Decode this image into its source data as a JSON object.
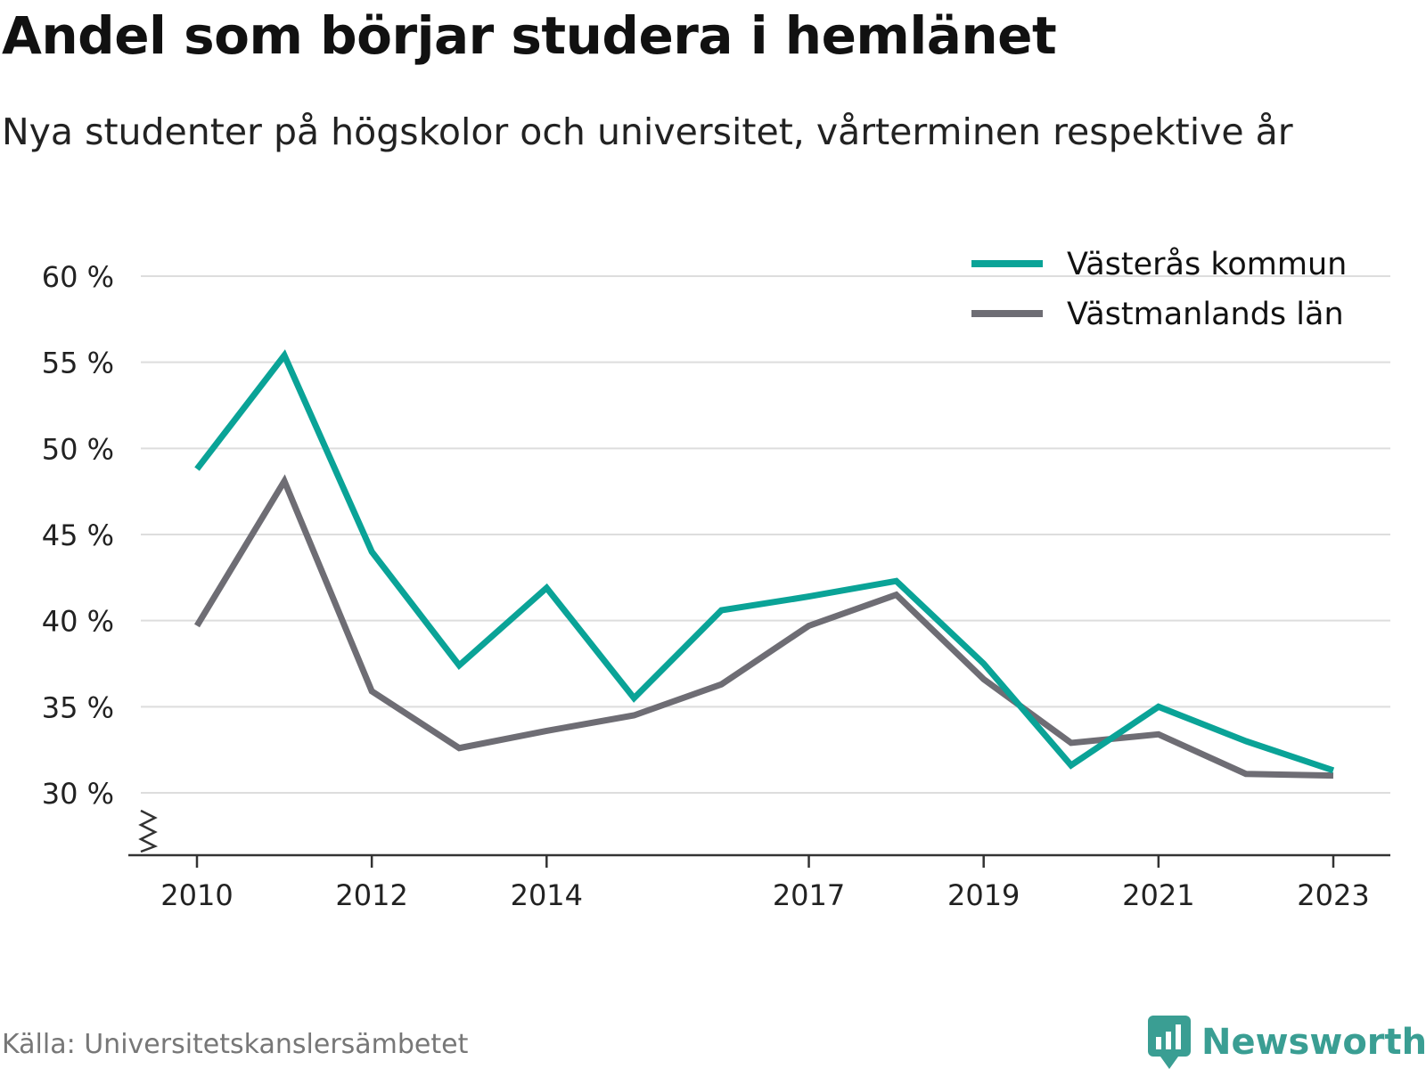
{
  "title": "Andel som börjar studera i hemlänet",
  "subtitle": "Nya studenter på högskolor och universitet, vårterminen respektive år",
  "source": "Källa: Universitetskanslersämbetet",
  "brand": "Newsworthy",
  "colors": {
    "series_primary": "#0aa397",
    "series_secondary": "#6e6d74",
    "grid": "#dddddd",
    "axis": "#333333",
    "brand": "#3a9e93"
  },
  "chart_data": {
    "type": "line",
    "title": "Andel som börjar studera i hemlänet",
    "subtitle": "Nya studenter på högskolor och universitet, vårterminen respektive år",
    "x": [
      2010,
      2011,
      2012,
      2013,
      2014,
      2015,
      2016,
      2017,
      2018,
      2019,
      2020,
      2021,
      2022,
      2023
    ],
    "x_ticks": [
      "2010",
      "2012",
      "2014",
      "2017",
      "2019",
      "2021",
      "2023"
    ],
    "y_ticks": [
      "30 %",
      "35 %",
      "40 %",
      "45 %",
      "50 %",
      "55 %",
      "60 %"
    ],
    "ylim": [
      30,
      60
    ],
    "y_axis_break": true,
    "grid": true,
    "legend_position": "top-right",
    "series": [
      {
        "name": "Västerås kommun",
        "color": "#0aa397",
        "values": [
          48.8,
          55.4,
          44.0,
          37.4,
          41.9,
          35.5,
          40.6,
          41.4,
          42.3,
          37.5,
          31.6,
          35.0,
          33.0,
          31.3
        ]
      },
      {
        "name": "Västmanlands län",
        "color": "#6e6d74",
        "values": [
          39.7,
          48.1,
          35.9,
          32.6,
          33.6,
          34.5,
          36.3,
          39.7,
          41.5,
          36.6,
          32.9,
          33.4,
          31.1,
          31.0
        ]
      }
    ]
  }
}
